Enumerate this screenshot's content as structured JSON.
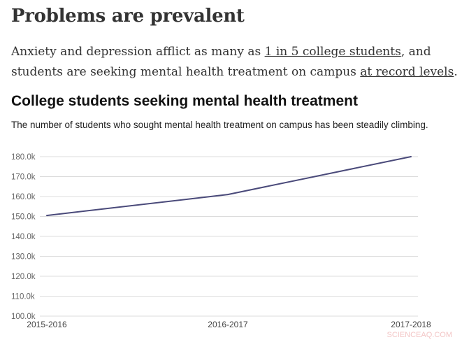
{
  "article": {
    "heading": "Problems are prevalent",
    "intro_before": "Anxiety and depression afflict as many as ",
    "link1": "1 in 5 college students",
    "intro_middle": ", and students are seeking mental health treatment on campus ",
    "link2": "at record levels",
    "intro_after": "."
  },
  "watermark": "SCIENCEAQ.COM",
  "chart_data": {
    "type": "line",
    "title": "College students seeking mental health treatment",
    "subtitle": "The number of students who sought mental health treatment on campus has been steadily climbing.",
    "categories": [
      "2015-2016",
      "2016-2017",
      "2017-2018"
    ],
    "series": [
      {
        "values": [
          150500,
          161000,
          180000
        ],
        "color": "#4a4a7a"
      }
    ],
    "ylim": [
      100000,
      180000
    ],
    "yticks": [
      100000,
      110000,
      120000,
      130000,
      140000,
      150000,
      160000,
      170000,
      180000
    ],
    "ytick_labels": [
      "100.0k",
      "110.0k",
      "120.0k",
      "130.0k",
      "140.0k",
      "150.0k",
      "160.0k",
      "170.0k",
      "180.0k"
    ],
    "grid": true,
    "legend": "none"
  }
}
